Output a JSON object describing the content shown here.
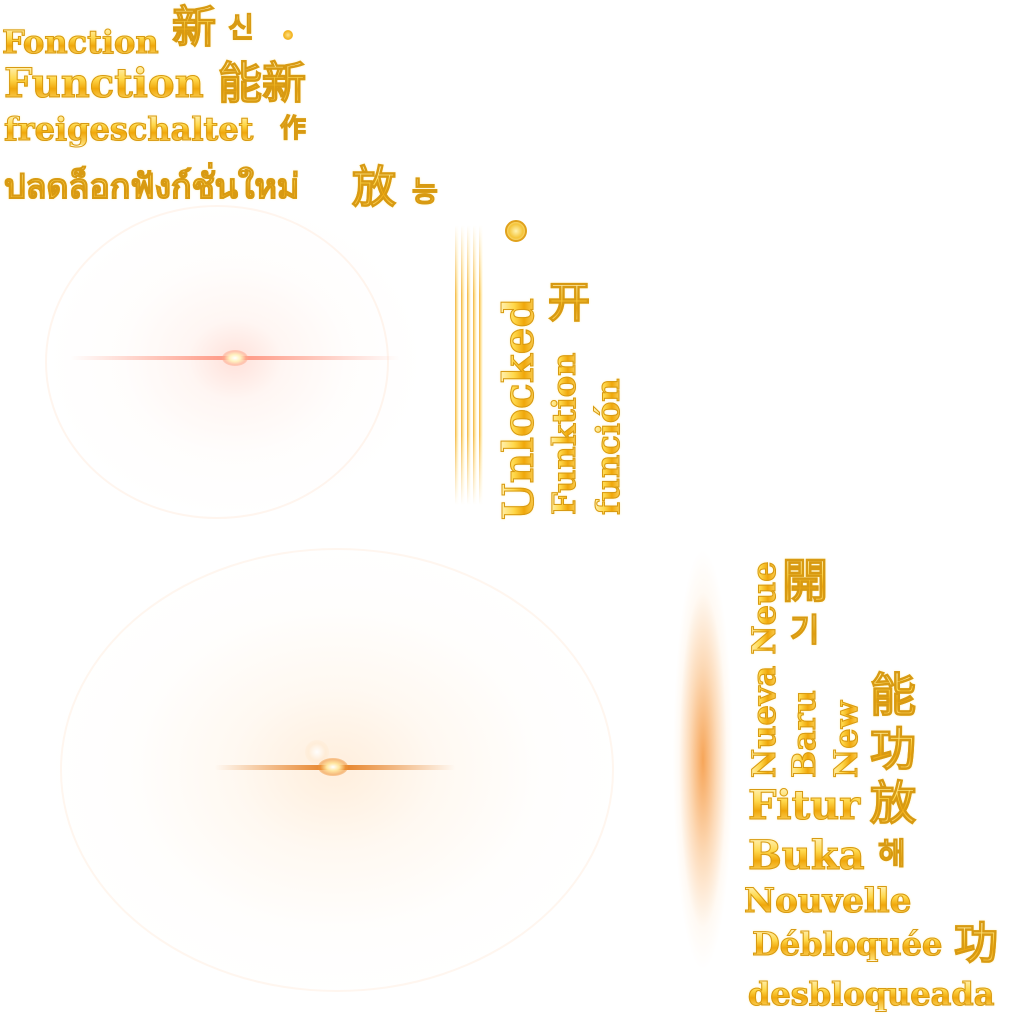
{
  "atlas": {
    "top_left": {
      "line1_word": "Fonction",
      "line1_glyph": "新",
      "line1_extra": "신",
      "line2_word": "Function",
      "line2_glyphs": "能新",
      "line3_word": "freigeschaltet",
      "line3_glyph": "作",
      "line4_word": "ปลดล็อกฟังก์ชั่นใหม่",
      "line4_glyph": "放",
      "line4_extra": "능"
    },
    "middle_vertical": {
      "word1": "Unlocked",
      "word2": "Funktion",
      "word3": "función",
      "glyph": "开"
    },
    "bottom_right": {
      "vert1": "Nueva Neue",
      "vert2": "Baru",
      "vert3": "New",
      "glyph_open": "開",
      "glyph_gi": "기",
      "glyph_neng": "能",
      "glyph_gong": "功",
      "glyph_fang": "放",
      "glyph_hae": "해",
      "word_fitur": "Fitur",
      "word_buka": "Buka",
      "word_nouvelle": "Nouvelle",
      "word_debloquee": "Débloquée",
      "glyph_gong2": "功",
      "word_desbloqueada": "desbloqueada"
    },
    "colors": {
      "gold_light": "#fff6c8",
      "gold_mid": "#ffd84a",
      "gold_dark": "#f0a70a",
      "flare_pink": "#ff9682",
      "flare_orange": "#e6822a"
    },
    "icons": [
      "sparkle-dot-icon",
      "gear-badge-icon"
    ]
  }
}
